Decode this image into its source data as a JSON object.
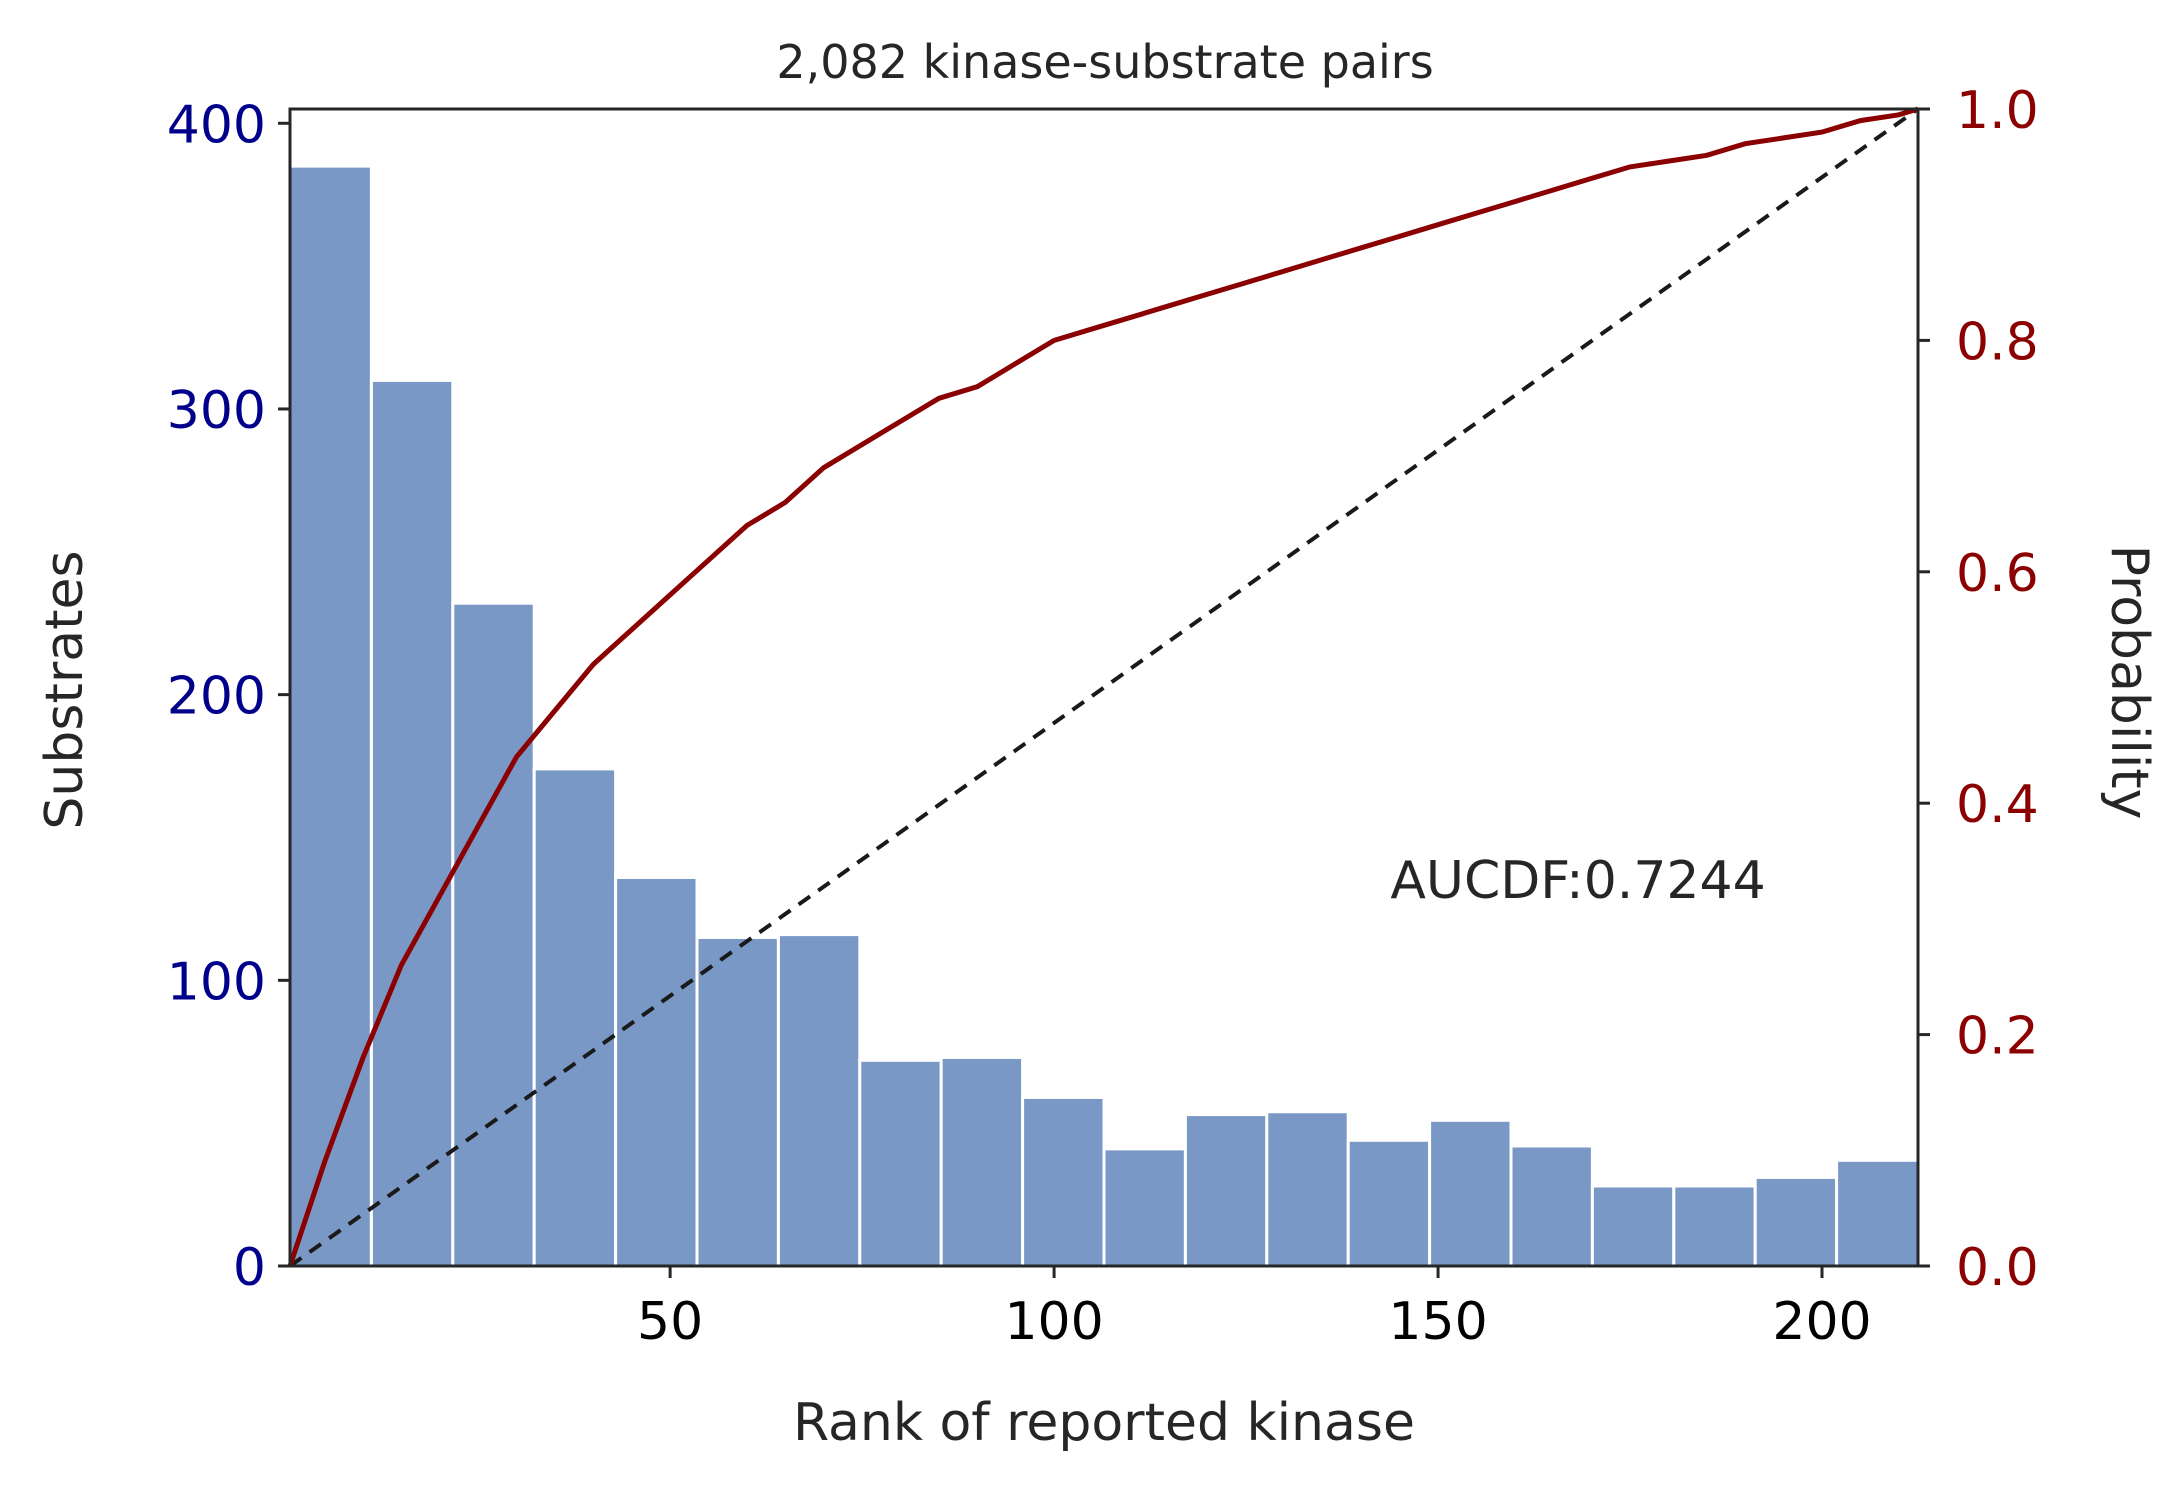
{
  "chart_data": {
    "type": "bar",
    "title": "2,082 kinase-substrate pairs",
    "xlabel": "Rank of reported kinase",
    "ylabel_left": "Substrates",
    "ylabel_right": "Probability",
    "xlim": [
      0.5,
      212.5
    ],
    "ylim_left": [
      0,
      405
    ],
    "ylim_right": [
      0,
      1.0
    ],
    "x_ticks": [
      50,
      100,
      150,
      200
    ],
    "y_ticks_left": [
      0,
      100,
      200,
      300,
      400
    ],
    "y_ticks_right": [
      0.0,
      0.2,
      0.4,
      0.6,
      0.8,
      1.0
    ],
    "annotation": "AUCDF:0.7244",
    "colors": {
      "bars": "#7a98c6",
      "cdf_line": "#8b0000",
      "left_axis": "#00008b",
      "right_axis": "#8b0000",
      "diagonal": "#1a1a1a"
    },
    "histogram": {
      "name": "Substrates",
      "bin_edges": [
        0.5,
        11.1,
        21.7,
        32.3,
        42.9,
        53.5,
        64.1,
        74.7,
        85.3,
        95.9,
        106.5,
        117.1,
        127.7,
        138.3,
        148.9,
        159.5,
        170.1,
        180.7,
        191.3,
        201.9,
        212.5
      ],
      "values": [
        385,
        310,
        232,
        174,
        136,
        115,
        116,
        72,
        73,
        59,
        41,
        53,
        54,
        44,
        51,
        42,
        28,
        28,
        31,
        37
      ]
    },
    "cdf": {
      "name": "Probability",
      "x": [
        0.5,
        5,
        10,
        15,
        20,
        25,
        30,
        35,
        40,
        45,
        50,
        55,
        60,
        65,
        70,
        75,
        80,
        85,
        90,
        95,
        100,
        105,
        110,
        115,
        120,
        125,
        130,
        135,
        140,
        145,
        150,
        155,
        160,
        165,
        170,
        175,
        180,
        185,
        190,
        195,
        200,
        205,
        210,
        212.5
      ],
      "y": [
        0.0,
        0.09,
        0.18,
        0.26,
        0.32,
        0.38,
        0.44,
        0.48,
        0.52,
        0.55,
        0.58,
        0.61,
        0.64,
        0.66,
        0.69,
        0.71,
        0.73,
        0.75,
        0.76,
        0.78,
        0.8,
        0.81,
        0.82,
        0.83,
        0.84,
        0.85,
        0.86,
        0.87,
        0.88,
        0.89,
        0.9,
        0.91,
        0.92,
        0.93,
        0.94,
        0.95,
        0.955,
        0.96,
        0.97,
        0.975,
        0.98,
        0.99,
        0.995,
        1.0
      ]
    },
    "diagonal": {
      "x": [
        0.5,
        212.5
      ],
      "y": [
        0.0,
        1.0
      ],
      "style": "dashed"
    }
  }
}
